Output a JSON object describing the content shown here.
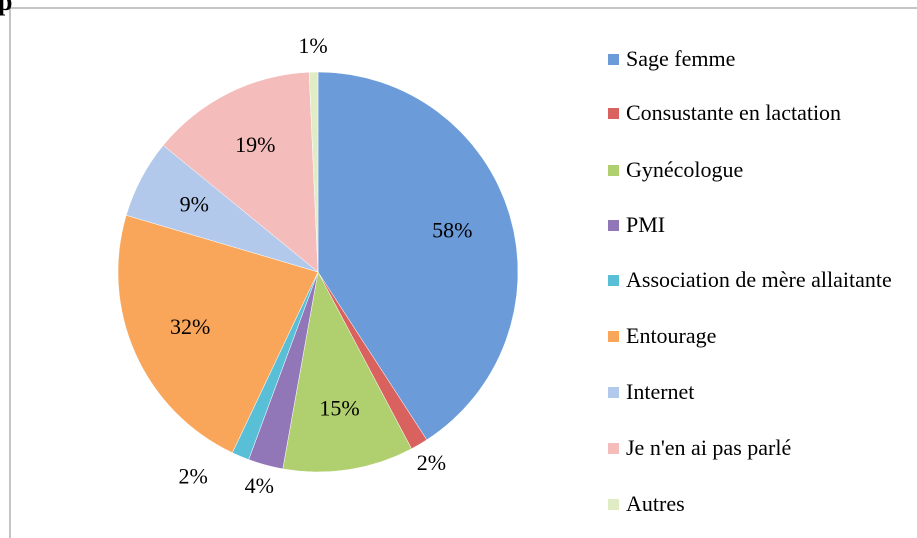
{
  "chart_data": {
    "type": "pie",
    "title": "p",
    "categories": [
      "Sage femme",
      "Consustante en lactation",
      "Gynécologue",
      "PMI",
      "Association de mère allaitante",
      "Entourage",
      "Internet",
      "Je n'en ai pas parlé",
      "Autres"
    ],
    "values": [
      58,
      2,
      15,
      4,
      2,
      32,
      9,
      19,
      1
    ],
    "value_labels": [
      "58%",
      "2%",
      "15%",
      "4%",
      "2%",
      "32%",
      "9%",
      "19%",
      "1%"
    ],
    "colors": [
      "#6b9bd8",
      "#d9625f",
      "#b0cf6e",
      "#9277b8",
      "#58bfd6",
      "#f9a65a",
      "#b2c9ec",
      "#f4bcbb",
      "#e0ecc4"
    ],
    "legend": "right"
  }
}
